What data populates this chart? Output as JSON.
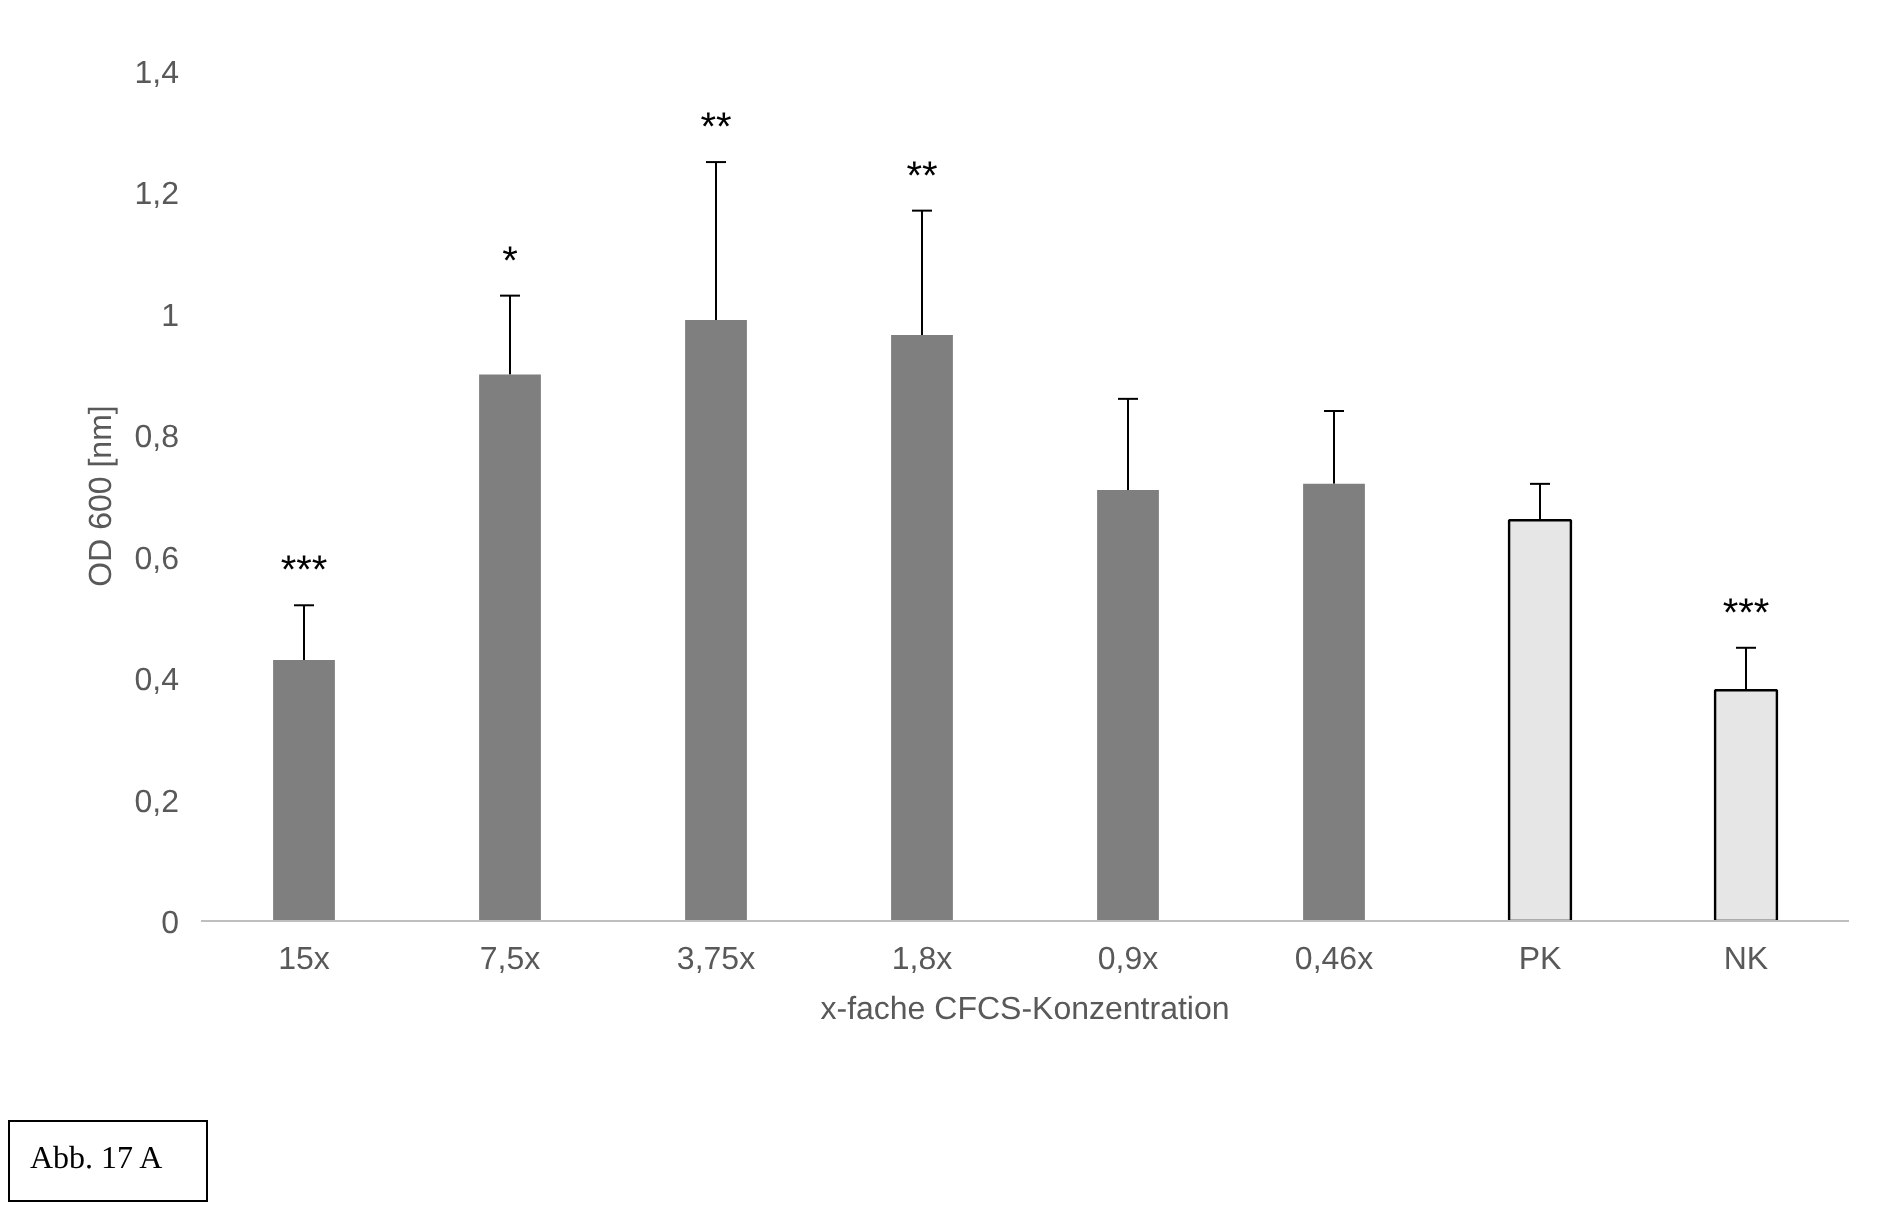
{
  "chart_data": {
    "type": "bar",
    "xlabel": "x-fache CFCS-Konzentration",
    "ylabel": "OD 600 [nm]",
    "categories": [
      "15x",
      "7,5x",
      "3,75x",
      "1,8x",
      "0,9x",
      "0,46x",
      "PK",
      "NK"
    ],
    "values": [
      0.43,
      0.9,
      0.99,
      0.965,
      0.71,
      0.72,
      0.66,
      0.38
    ],
    "colors": [
      "#7f7f7f",
      "#7f7f7f",
      "#7f7f7f",
      "#7f7f7f",
      "#7f7f7f",
      "#7f7f7f",
      "#e7e6e6",
      "#e7e6e6"
    ],
    "errors": [
      [
        0.43,
        0.52
      ],
      [
        0.9,
        1.03
      ],
      [
        0.99,
        1.25
      ],
      [
        0.965,
        1.17
      ],
      [
        0.71,
        0.86
      ],
      [
        0.72,
        0.84
      ],
      [
        0.66,
        0.72
      ],
      [
        0.38,
        0.45
      ]
    ],
    "ylim": [
      0,
      1.4
    ],
    "yticks": [
      0,
      {
        "value": 0.2,
        "label": "0,2"
      },
      {
        "value": 0.4,
        "label": "0,4"
      },
      {
        "value": 0.6,
        "label": "0,6"
      },
      {
        "value": 0.8,
        "label": "0,8"
      },
      1,
      {
        "value": 1.2,
        "label": "1,2"
      },
      {
        "value": 1.4,
        "label": "1,4"
      }
    ],
    "grid": false,
    "annotations": [
      {
        "text": "***",
        "x": "15x",
        "y": 0.52
      },
      {
        "text": "*",
        "x": "7,5x",
        "y": 1.03
      },
      {
        "text": "**",
        "x": "3,75x",
        "y": 1.25
      },
      {
        "text": "**",
        "x": "1,8x",
        "y": 1.17
      },
      {
        "text": "***",
        "x": "NK",
        "y": 0.45
      },
      "Abb. 17 A"
    ]
  }
}
